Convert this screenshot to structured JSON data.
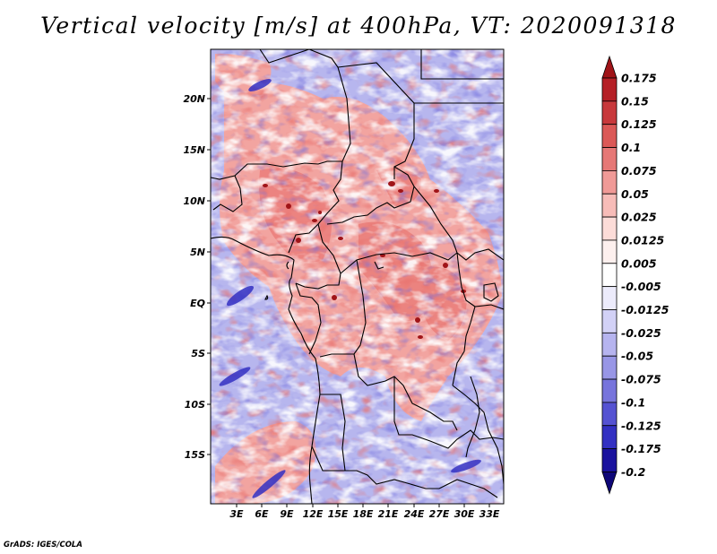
{
  "title": "Vertical velocity [m/s] at 400hPa, VT: 2020091318",
  "credit": "GrADS: IGES/COLA",
  "map": {
    "lon_labels": [
      "3E",
      "6E",
      "9E",
      "12E",
      "15E",
      "18E",
      "21E",
      "24E",
      "27E",
      "30E",
      "33E"
    ],
    "lat_labels": [
      "20N",
      "15N",
      "10N",
      "5N",
      "EQ",
      "5S",
      "10S",
      "15S"
    ]
  },
  "colorbar": {
    "levels": [
      "0.175",
      "0.15",
      "0.125",
      "0.1",
      "0.075",
      "0.05",
      "0.025",
      "0.0125",
      "0.005",
      "-0.005",
      "-0.0125",
      "-0.025",
      "-0.05",
      "-0.075",
      "-0.1",
      "-0.125",
      "-0.175",
      "-0.2"
    ],
    "colors": [
      "#a01418",
      "#b52026",
      "#c8393c",
      "#db5957",
      "#e67876",
      "#f09a97",
      "#f7bcb8",
      "#fcdcd8",
      "#fdf0ee",
      "#ffffff",
      "#ecebfb",
      "#d2d1f6",
      "#b6b4ef",
      "#9896e6",
      "#7774dc",
      "#5552d2",
      "#3330c2",
      "#1a129e",
      "#0e0778"
    ]
  }
}
